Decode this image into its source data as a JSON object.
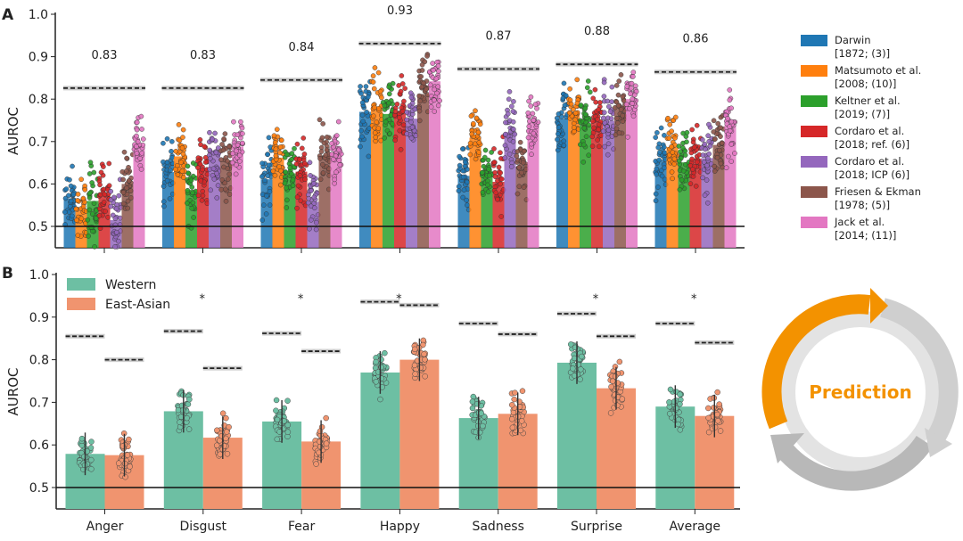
{
  "chart_data": [
    {
      "panel": "A",
      "type": "bar",
      "ylabel": "AUROC",
      "ylim": [
        0.45,
        1.0
      ],
      "yticks": [
        "0.5",
        "0.6",
        "0.7",
        "0.8",
        "0.9",
        "1.0"
      ],
      "reference_line": 0.5,
      "categories": [
        "Anger",
        "Disgust",
        "Fear",
        "Happy",
        "Sadness",
        "Surprise",
        "Average"
      ],
      "ceiling_labels": [
        "0.83",
        "0.83",
        "0.84",
        "0.93",
        "0.87",
        "0.88",
        "0.86"
      ],
      "ceiling_values": [
        0.826,
        0.826,
        0.845,
        0.931,
        0.871,
        0.882,
        0.864
      ],
      "legend_position": "right",
      "series": [
        {
          "name": "Darwin",
          "ref": "[1872; (3)]",
          "color": "#1f77b4",
          "values": [
            0.566,
            0.628,
            0.611,
            0.77,
            0.619,
            0.754,
            0.657
          ]
        },
        {
          "name": "Matsumoto et al.",
          "ref": "[2008; (10)]",
          "color": "#ff7f0e",
          "values": [
            0.537,
            0.665,
            0.662,
            0.782,
            0.709,
            0.764,
            0.687
          ]
        },
        {
          "name": "Keltner et al.",
          "ref": "[2019; (7)]",
          "color": "#2ca02c",
          "values": [
            0.56,
            0.586,
            0.625,
            0.765,
            0.63,
            0.739,
            0.651
          ]
        },
        {
          "name": "Cordaro et al.",
          "ref": "[2018; ref. (6)]",
          "color": "#d62728",
          "values": [
            0.575,
            0.638,
            0.629,
            0.767,
            0.605,
            0.748,
            0.66
          ]
        },
        {
          "name": "Cordaro et al.",
          "ref": "[2018; ICP (6)]",
          "color": "#9467bd",
          "values": [
            0.515,
            0.673,
            0.558,
            0.754,
            0.722,
            0.749,
            0.661
          ]
        },
        {
          "name": "Friesen & Ekman",
          "ref": "[1978; (5)]",
          "color": "#8c564b",
          "values": [
            0.6,
            0.654,
            0.666,
            0.812,
            0.641,
            0.783,
            0.692
          ]
        },
        {
          "name": "Jack et al.",
          "ref": "[2014; (11)]",
          "color": "#e377c2",
          "values": [
            0.69,
            0.688,
            0.674,
            0.842,
            0.745,
            0.8,
            0.739
          ]
        }
      ]
    },
    {
      "panel": "B",
      "type": "bar",
      "ylabel": "AUROC",
      "ylim": [
        0.45,
        1.0
      ],
      "yticks": [
        "0.5",
        "0.6",
        "0.7",
        "0.8",
        "0.9",
        "1.0"
      ],
      "reference_line": 0.5,
      "categories": [
        "Anger",
        "Disgust",
        "Fear",
        "Happy",
        "Sadness",
        "Surprise",
        "Average"
      ],
      "significance": [
        "",
        "*",
        "*",
        "*",
        "",
        "*",
        "*"
      ],
      "legend_position": "top-left",
      "series": [
        {
          "name": "Western",
          "color": "#6dbfa3",
          "values": [
            0.579,
            0.679,
            0.655,
            0.77,
            0.663,
            0.793,
            0.69
          ],
          "ceiling": [
            0.855,
            0.867,
            0.862,
            0.936,
            0.885,
            0.908,
            0.885
          ]
        },
        {
          "name": "East-Asian",
          "color": "#f0946f",
          "values": [
            0.576,
            0.617,
            0.608,
            0.8,
            0.673,
            0.733,
            0.668
          ],
          "ceiling": [
            0.8,
            0.78,
            0.82,
            0.928,
            0.86,
            0.855,
            0.84
          ]
        }
      ]
    }
  ],
  "graphic": {
    "label": "Prediction",
    "accent": "#f39200"
  }
}
